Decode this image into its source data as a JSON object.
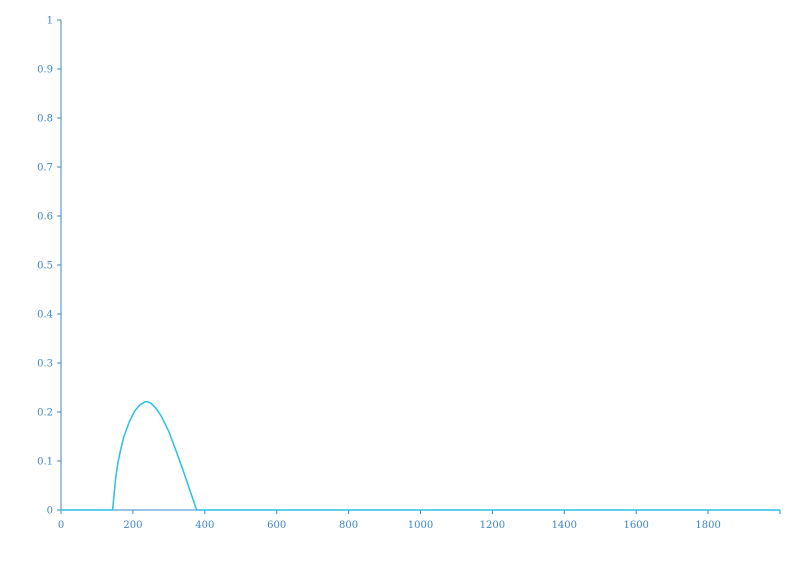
{
  "chart_data": {
    "type": "line",
    "title": "",
    "xlabel": "",
    "ylabel": "",
    "xlim": [
      0,
      2000
    ],
    "ylim": [
      0,
      1
    ],
    "grid": false,
    "x_ticks": [
      0,
      200,
      400,
      600,
      800,
      1000,
      1200,
      1400,
      1600,
      1800
    ],
    "x_tick_labels": [
      "0",
      "200",
      "400",
      "600",
      "800",
      "1000",
      "1200",
      "1400",
      "1600",
      "1800"
    ],
    "y_ticks": [
      0,
      0.1,
      0.2,
      0.3,
      0.4,
      0.5,
      0.6,
      0.7,
      0.8,
      0.9,
      1
    ],
    "y_tick_labels": [
      "0",
      "0.1",
      "0.2",
      "0.3",
      "0.4",
      "0.5",
      "0.6",
      "0.7",
      "0.8",
      "0.9",
      "1"
    ],
    "series": [
      {
        "color": "#29c0e8",
        "x": [
          0,
          100,
          143,
          145,
          148,
          152,
          158,
          165,
          175,
          190,
          205,
          220,
          235,
          240,
          250,
          265,
          280,
          300,
          320,
          340,
          360,
          375,
          378,
          400,
          600,
          800,
          1000,
          1200,
          1400,
          1600,
          1800,
          2000
        ],
        "y": [
          0,
          0,
          0,
          0.01,
          0.035,
          0.065,
          0.095,
          0.12,
          0.15,
          0.18,
          0.202,
          0.215,
          0.221,
          0.221,
          0.218,
          0.207,
          0.19,
          0.16,
          0.121,
          0.08,
          0.037,
          0.005,
          0,
          0,
          0,
          0,
          0,
          0,
          0,
          0,
          0,
          0
        ]
      }
    ]
  },
  "colors": {
    "axis": "#3d85c6",
    "tick_text": "#3d85c6",
    "line": "#29c0e8"
  }
}
